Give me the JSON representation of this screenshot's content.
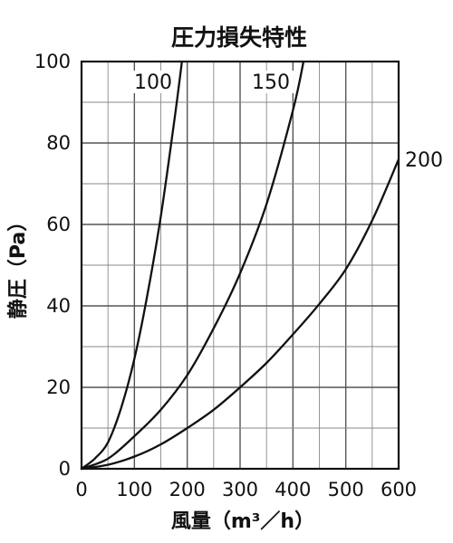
{
  "chart_data": {
    "type": "line",
    "title": "圧力損失特性",
    "xlabel": "風量（m³／h）",
    "ylabel": "静圧（Pa）",
    "xlim": [
      0,
      600
    ],
    "ylim": [
      0,
      100
    ],
    "x_ticks": [
      "0",
      "100",
      "200",
      "300",
      "400",
      "500",
      "600"
    ],
    "y_ticks": [
      "0",
      "20",
      "40",
      "60",
      "80",
      "100"
    ],
    "grid": true,
    "minor_grid": true,
    "legend": "none",
    "series": [
      {
        "name": "100",
        "x": [
          0,
          25,
          50,
          75,
          100,
          125,
          150,
          175,
          190
        ],
        "y": [
          0,
          2.5,
          6.5,
          15,
          27,
          43,
          62,
          85,
          100
        ]
      },
      {
        "name": "150",
        "x": [
          0,
          50,
          100,
          150,
          200,
          250,
          300,
          350,
          400,
          420
        ],
        "y": [
          0,
          2.5,
          8,
          14.5,
          23,
          34.5,
          48,
          65,
          88,
          100
        ]
      },
      {
        "name": "200",
        "x": [
          0,
          50,
          100,
          150,
          200,
          250,
          300,
          350,
          400,
          450,
          500,
          550,
          600
        ],
        "y": [
          0,
          1,
          3,
          6,
          10,
          14.5,
          20,
          26,
          33,
          40.5,
          49,
          61,
          76
        ]
      }
    ]
  }
}
